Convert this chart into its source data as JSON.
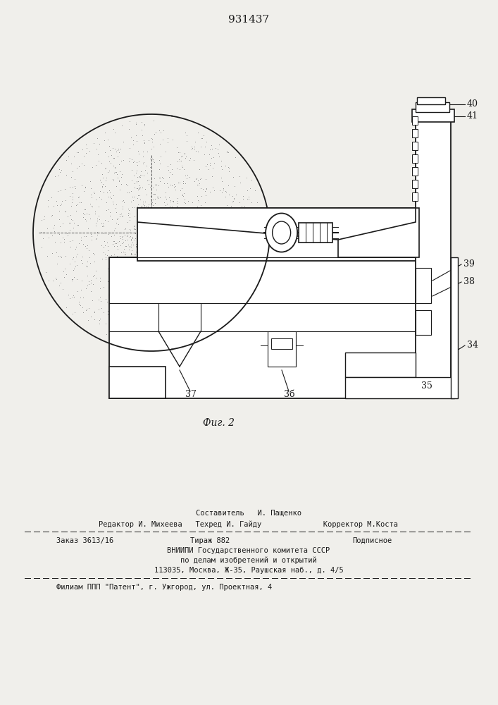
{
  "patent_number": "931437",
  "fig_label": "Фиг. 2",
  "background_color": "#f0efeb",
  "line_color": "#1a1a1a",
  "footer": {
    "line1": "Составитель   И. Пащенко",
    "line2": "Редактор И. Михеева   Техред И. Гайду              Корректор М.Коста",
    "line3a": "Заказ 3613/16",
    "line3b": "Тираж 882",
    "line3c": "Подписное",
    "line4": "ВНИИПИ Государственного комитета СССР",
    "line5": "по делам изобретений и открытий",
    "line6": "113035, Москва, Ж-35, Раушская наб., д. 4/5",
    "line7": "Филиам ППП \"Патент\", г. Ужгород, ул. Проектная, 4"
  }
}
